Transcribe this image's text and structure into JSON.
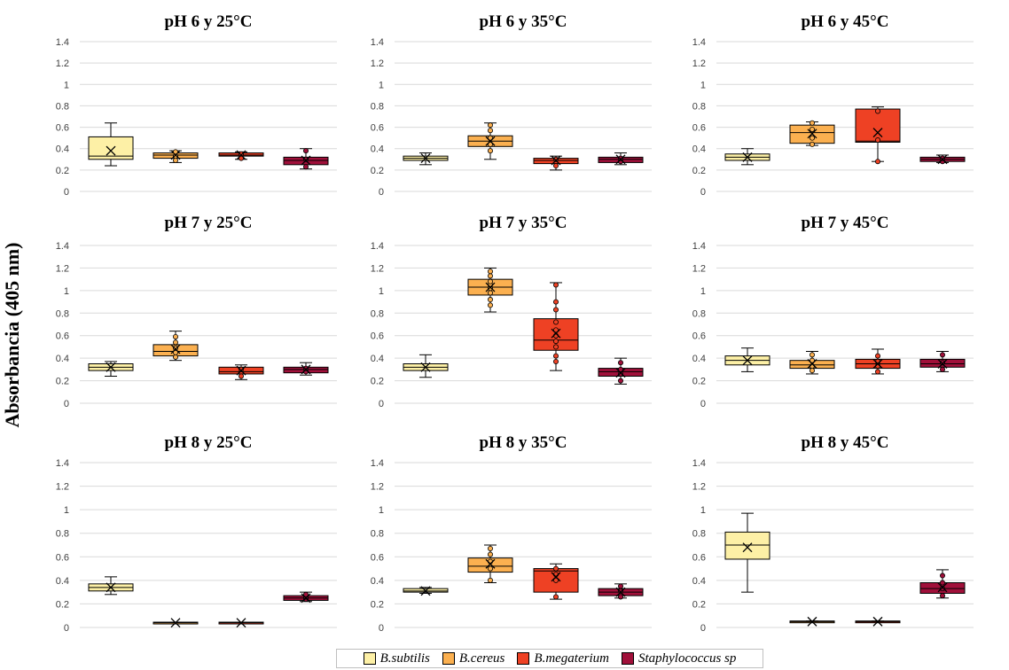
{
  "y_axis_label": "Absorbancia (405 nm)",
  "colors": {
    "B.subtilis": "#fdf0a6",
    "B.cereus": "#fbb050",
    "B.megaterium": "#ee4124",
    "Staphylococcus sp": "#a0103a"
  },
  "legend": [
    "B.subtilis",
    "B.cereus",
    "B.megaterium",
    "Staphylococcus sp"
  ],
  "chart_data": [
    {
      "type": "box",
      "title": "pH 6 y 25°C",
      "ylim": [
        0,
        1.4
      ],
      "yticks": [
        "0",
        "0.2",
        "0.4",
        "0.6",
        "0.8",
        "1",
        "1.2",
        "1.4"
      ],
      "series": [
        {
          "name": "B.subtilis",
          "min": 0.24,
          "q1": 0.3,
          "median": 0.33,
          "q3": 0.51,
          "max": 0.64,
          "mean": 0.38,
          "points": []
        },
        {
          "name": "B.cereus",
          "min": 0.27,
          "q1": 0.31,
          "median": 0.34,
          "q3": 0.36,
          "max": 0.38,
          "mean": 0.34,
          "points": [
            0.29,
            0.33,
            0.37
          ]
        },
        {
          "name": "B.megaterium",
          "min": 0.3,
          "q1": 0.33,
          "median": 0.34,
          "q3": 0.36,
          "max": 0.37,
          "mean": 0.34,
          "points": [
            0.31,
            0.35
          ]
        },
        {
          "name": "Staphylococcus sp",
          "min": 0.21,
          "q1": 0.25,
          "median": 0.29,
          "q3": 0.32,
          "max": 0.4,
          "mean": 0.29,
          "points": [
            0.23,
            0.3,
            0.38
          ]
        }
      ]
    },
    {
      "type": "box",
      "title": "pH 6 y 35°C",
      "ylim": [
        0,
        1.4
      ],
      "yticks": [
        "0",
        "0.2",
        "0.4",
        "0.6",
        "0.8",
        "1",
        "1.2",
        "1.4"
      ],
      "series": [
        {
          "name": "B.subtilis",
          "min": 0.25,
          "q1": 0.29,
          "median": 0.31,
          "q3": 0.33,
          "max": 0.36,
          "mean": 0.31,
          "points": []
        },
        {
          "name": "B.cereus",
          "min": 0.3,
          "q1": 0.42,
          "median": 0.47,
          "q3": 0.52,
          "max": 0.64,
          "mean": 0.47,
          "points": [
            0.38,
            0.44,
            0.5,
            0.57,
            0.62
          ]
        },
        {
          "name": "B.megaterium",
          "min": 0.2,
          "q1": 0.26,
          "median": 0.29,
          "q3": 0.31,
          "max": 0.33,
          "mean": 0.29,
          "points": [
            0.24,
            0.3
          ]
        },
        {
          "name": "Staphylococcus sp",
          "min": 0.25,
          "q1": 0.27,
          "median": 0.3,
          "q3": 0.32,
          "max": 0.36,
          "mean": 0.3,
          "points": [
            0.28,
            0.31
          ]
        }
      ]
    },
    {
      "type": "box",
      "title": "pH 6 y 45°C",
      "ylim": [
        0,
        1.4
      ],
      "yticks": [
        "0",
        "0.2",
        "0.4",
        "0.6",
        "0.8",
        "1",
        "1.2",
        "1.4"
      ],
      "series": [
        {
          "name": "B.subtilis",
          "min": 0.25,
          "q1": 0.29,
          "median": 0.32,
          "q3": 0.35,
          "max": 0.4,
          "mean": 0.32,
          "points": []
        },
        {
          "name": "B.cereus",
          "min": 0.43,
          "q1": 0.45,
          "median": 0.55,
          "q3": 0.62,
          "max": 0.65,
          "mean": 0.54,
          "points": [
            0.44,
            0.5,
            0.58,
            0.64
          ]
        },
        {
          "name": "B.megaterium",
          "min": 0.28,
          "q1": 0.46,
          "median": 0.47,
          "q3": 0.77,
          "max": 0.79,
          "mean": 0.55,
          "points": [
            0.28,
            0.48,
            0.75
          ]
        },
        {
          "name": "Staphylococcus sp",
          "min": 0.27,
          "q1": 0.28,
          "median": 0.3,
          "q3": 0.32,
          "max": 0.34,
          "mean": 0.3,
          "points": [
            0.28,
            0.31
          ]
        }
      ]
    },
    {
      "type": "box",
      "title": "pH 7 y 25°C",
      "ylim": [
        0,
        1.4
      ],
      "yticks": [
        "0",
        "0.2",
        "0.4",
        "0.6",
        "0.8",
        "1",
        "1.2",
        "1.4"
      ],
      "series": [
        {
          "name": "B.subtilis",
          "min": 0.24,
          "q1": 0.29,
          "median": 0.32,
          "q3": 0.35,
          "max": 0.37,
          "mean": 0.32,
          "points": []
        },
        {
          "name": "B.cereus",
          "min": 0.38,
          "q1": 0.42,
          "median": 0.46,
          "q3": 0.52,
          "max": 0.64,
          "mean": 0.48,
          "points": [
            0.41,
            0.45,
            0.49,
            0.54,
            0.59
          ]
        },
        {
          "name": "B.megaterium",
          "min": 0.21,
          "q1": 0.26,
          "median": 0.28,
          "q3": 0.32,
          "max": 0.34,
          "mean": 0.29,
          "points": [
            0.24,
            0.3
          ]
        },
        {
          "name": "Staphylococcus sp",
          "min": 0.25,
          "q1": 0.27,
          "median": 0.3,
          "q3": 0.32,
          "max": 0.36,
          "mean": 0.3,
          "points": [
            0.28,
            0.31
          ]
        }
      ]
    },
    {
      "type": "box",
      "title": "pH 7 y 35°C",
      "ylim": [
        0,
        1.4
      ],
      "yticks": [
        "0",
        "0.2",
        "0.4",
        "0.6",
        "0.8",
        "1",
        "1.2",
        "1.4"
      ],
      "series": [
        {
          "name": "B.subtilis",
          "min": 0.23,
          "q1": 0.29,
          "median": 0.32,
          "q3": 0.35,
          "max": 0.43,
          "mean": 0.32,
          "points": []
        },
        {
          "name": "B.cereus",
          "min": 0.81,
          "q1": 0.96,
          "median": 1.03,
          "q3": 1.1,
          "max": 1.2,
          "mean": 1.03,
          "points": [
            0.87,
            0.92,
            0.98,
            1.02,
            1.05,
            1.08,
            1.13,
            1.17
          ]
        },
        {
          "name": "B.megaterium",
          "min": 0.29,
          "q1": 0.47,
          "median": 0.56,
          "q3": 0.75,
          "max": 1.07,
          "mean": 0.62,
          "points": [
            0.37,
            0.42,
            0.5,
            0.55,
            0.6,
            0.65,
            0.72,
            0.83,
            0.9,
            1.05
          ]
        },
        {
          "name": "Staphylococcus sp",
          "min": 0.17,
          "q1": 0.24,
          "median": 0.28,
          "q3": 0.31,
          "max": 0.4,
          "mean": 0.27,
          "points": [
            0.2,
            0.26,
            0.3,
            0.36
          ]
        }
      ]
    },
    {
      "type": "box",
      "title": "pH 7 y 45°C",
      "ylim": [
        0,
        1.4
      ],
      "yticks": [
        "0",
        "0.2",
        "0.4",
        "0.6",
        "0.8",
        "1",
        "1.2",
        "1.4"
      ],
      "series": [
        {
          "name": "B.subtilis",
          "min": 0.28,
          "q1": 0.34,
          "median": 0.38,
          "q3": 0.42,
          "max": 0.49,
          "mean": 0.38,
          "points": []
        },
        {
          "name": "B.cereus",
          "min": 0.26,
          "q1": 0.31,
          "median": 0.34,
          "q3": 0.38,
          "max": 0.46,
          "mean": 0.35,
          "points": [
            0.29,
            0.33,
            0.38,
            0.43
          ]
        },
        {
          "name": "B.megaterium",
          "min": 0.26,
          "q1": 0.31,
          "median": 0.35,
          "q3": 0.39,
          "max": 0.48,
          "mean": 0.35,
          "points": [
            0.28,
            0.33,
            0.37,
            0.42
          ]
        },
        {
          "name": "Staphylococcus sp",
          "min": 0.28,
          "q1": 0.32,
          "median": 0.35,
          "q3": 0.39,
          "max": 0.46,
          "mean": 0.35,
          "points": [
            0.3,
            0.36,
            0.43
          ]
        }
      ]
    },
    {
      "type": "box",
      "title": "pH 8 y 25°C",
      "ylim": [
        0,
        1.4
      ],
      "yticks": [
        "0",
        "0.2",
        "0.4",
        "0.6",
        "0.8",
        "1",
        "1.2",
        "1.4"
      ],
      "series": [
        {
          "name": "B.subtilis",
          "min": 0.28,
          "q1": 0.31,
          "median": 0.34,
          "q3": 0.37,
          "max": 0.43,
          "mean": 0.34,
          "points": []
        },
        {
          "name": "B.cereus",
          "min": 0.04,
          "q1": 0.04,
          "median": 0.04,
          "q3": 0.045,
          "max": 0.045,
          "mean": 0.04,
          "points": []
        },
        {
          "name": "B.megaterium",
          "min": 0.04,
          "q1": 0.04,
          "median": 0.04,
          "q3": 0.045,
          "max": 0.045,
          "mean": 0.04,
          "points": []
        },
        {
          "name": "Staphylococcus sp",
          "min": 0.22,
          "q1": 0.23,
          "median": 0.25,
          "q3": 0.27,
          "max": 0.3,
          "mean": 0.25,
          "points": [
            0.24,
            0.26,
            0.28
          ]
        }
      ]
    },
    {
      "type": "box",
      "title": "pH 8 y 35°C",
      "ylim": [
        0,
        1.4
      ],
      "yticks": [
        "0",
        "0.2",
        "0.4",
        "0.6",
        "0.8",
        "1",
        "1.2",
        "1.4"
      ],
      "series": [
        {
          "name": "B.subtilis",
          "min": 0.29,
          "q1": 0.3,
          "median": 0.31,
          "q3": 0.33,
          "max": 0.34,
          "mean": 0.31,
          "points": []
        },
        {
          "name": "B.cereus",
          "min": 0.38,
          "q1": 0.47,
          "median": 0.52,
          "q3": 0.59,
          "max": 0.7,
          "mean": 0.54,
          "points": [
            0.4,
            0.5,
            0.56,
            0.62,
            0.67
          ]
        },
        {
          "name": "B.megaterium",
          "min": 0.24,
          "q1": 0.3,
          "median": 0.48,
          "q3": 0.5,
          "max": 0.54,
          "mean": 0.43,
          "points": [
            0.26,
            0.4,
            0.45,
            0.5
          ]
        },
        {
          "name": "Staphylococcus sp",
          "min": 0.25,
          "q1": 0.27,
          "median": 0.3,
          "q3": 0.33,
          "max": 0.37,
          "mean": 0.3,
          "points": [
            0.26,
            0.31,
            0.35
          ]
        }
      ]
    },
    {
      "type": "box",
      "title": "pH 8 y 45°C",
      "ylim": [
        0,
        1.4
      ],
      "yticks": [
        "0",
        "0.2",
        "0.4",
        "0.6",
        "0.8",
        "1",
        "1.2",
        "1.4"
      ],
      "series": [
        {
          "name": "B.subtilis",
          "min": 0.3,
          "q1": 0.58,
          "median": 0.7,
          "q3": 0.81,
          "max": 0.97,
          "mean": 0.68,
          "points": []
        },
        {
          "name": "B.cereus",
          "min": 0.05,
          "q1": 0.05,
          "median": 0.05,
          "q3": 0.055,
          "max": 0.055,
          "mean": 0.05,
          "points": []
        },
        {
          "name": "B.megaterium",
          "min": 0.05,
          "q1": 0.05,
          "median": 0.05,
          "q3": 0.055,
          "max": 0.055,
          "mean": 0.05,
          "points": []
        },
        {
          "name": "Staphylococcus sp",
          "min": 0.25,
          "q1": 0.29,
          "median": 0.33,
          "q3": 0.38,
          "max": 0.49,
          "mean": 0.34,
          "points": [
            0.27,
            0.33,
            0.38,
            0.44
          ]
        }
      ]
    }
  ]
}
